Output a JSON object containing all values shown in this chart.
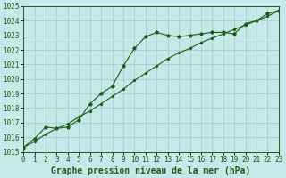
{
  "title": "Graphe pression niveau de la mer (hPa)",
  "bg_color": "#c5e8e8",
  "grid_color": "#a8cece",
  "line_color": "#1a5c1a",
  "x_min": 0,
  "x_max": 23,
  "y_min": 1015,
  "y_max": 1025,
  "x_ticks": [
    0,
    1,
    2,
    3,
    4,
    5,
    6,
    7,
    8,
    9,
    10,
    11,
    12,
    13,
    14,
    15,
    16,
    17,
    18,
    19,
    20,
    21,
    22,
    23
  ],
  "y_ticks": [
    1015,
    1016,
    1017,
    1018,
    1019,
    1020,
    1021,
    1022,
    1023,
    1024,
    1025
  ],
  "line1_x": [
    0,
    1,
    2,
    3,
    4,
    5,
    6,
    7,
    8,
    9,
    10,
    11,
    12,
    13,
    14,
    15,
    16,
    17,
    18,
    19,
    20,
    21,
    22,
    23
  ],
  "line1_y": [
    1015.3,
    1015.9,
    1016.7,
    1016.6,
    1016.7,
    1017.2,
    1018.3,
    1019.0,
    1019.5,
    1020.9,
    1022.1,
    1022.9,
    1023.2,
    1023.0,
    1022.9,
    1023.0,
    1023.1,
    1023.2,
    1023.2,
    1023.1,
    1023.8,
    1024.0,
    1024.5,
    1024.7
  ],
  "line2_x": [
    0,
    1,
    2,
    3,
    4,
    5,
    6,
    7,
    8,
    9,
    10,
    11,
    12,
    13,
    14,
    15,
    16,
    17,
    18,
    19,
    20,
    21,
    22,
    23
  ],
  "line2_y": [
    1015.3,
    1015.7,
    1016.2,
    1016.6,
    1016.9,
    1017.4,
    1017.8,
    1018.3,
    1018.8,
    1019.3,
    1019.9,
    1020.4,
    1020.9,
    1021.4,
    1021.8,
    1022.1,
    1022.5,
    1022.8,
    1023.1,
    1023.4,
    1023.7,
    1024.0,
    1024.3,
    1024.7
  ],
  "font_family": "monospace",
  "tick_fontsize": 5.5,
  "title_fontsize": 7.0,
  "marker_size1": 2.8,
  "marker_size2": 1.2,
  "linewidth": 0.8
}
